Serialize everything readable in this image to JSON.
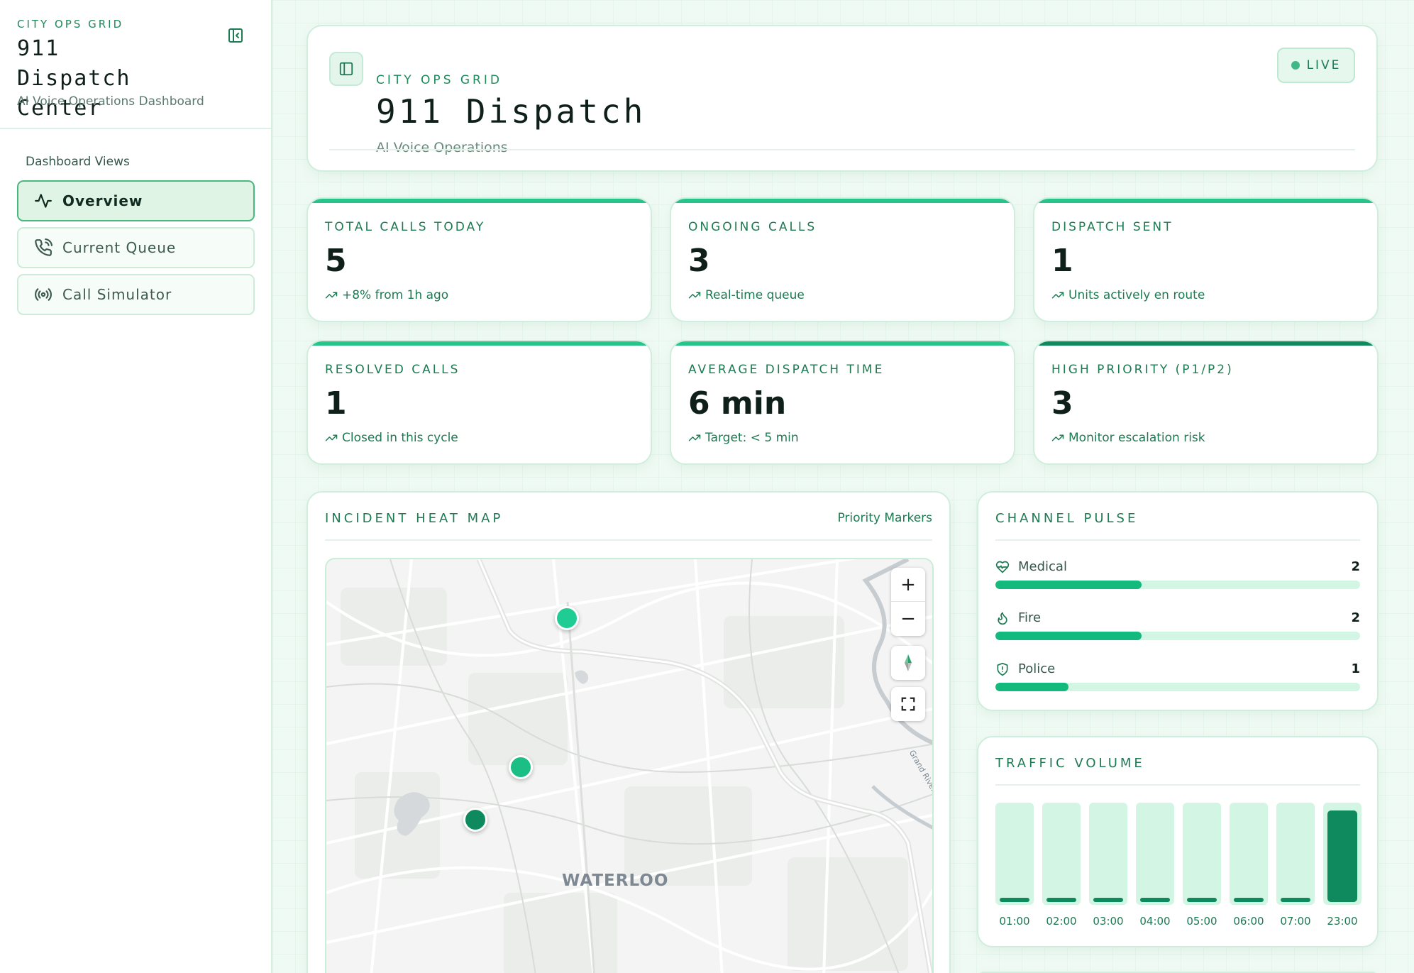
{
  "sidebar": {
    "eyebrow": "CITY OPS GRID",
    "title": "911 Dispatch Center",
    "subtitle": "AI Voice Operations Dashboard",
    "section_label": "Dashboard Views",
    "collapse_icon": "sidebar-collapse-icon",
    "items": [
      {
        "label": "Overview",
        "icon": "activity-icon",
        "active": true
      },
      {
        "label": "Current Queue",
        "icon": "phone-icon",
        "active": false
      },
      {
        "label": "Call Simulator",
        "icon": "broadcast-icon",
        "active": false
      }
    ]
  },
  "header": {
    "eyebrow": "CITY OPS GRID",
    "title": "911 Dispatch",
    "subtitle": "AI Voice Operations",
    "status": "LIVE",
    "toggle_icon": "panel-toggle-icon"
  },
  "stats": [
    {
      "label": "TOTAL CALLS TODAY",
      "value": "5",
      "note": "+8% from 1h ago"
    },
    {
      "label": "ONGOING CALLS",
      "value": "3",
      "note": "Real-time queue"
    },
    {
      "label": "DISPATCH SENT",
      "value": "1",
      "note": "Units actively en route"
    },
    {
      "label": "RESOLVED CALLS",
      "value": "1",
      "note": "Closed in this cycle"
    },
    {
      "label": "AVERAGE DISPATCH TIME",
      "value": "6 min",
      "note": "Target: < 5 min"
    },
    {
      "label": "HIGH PRIORITY (P1/P2)",
      "value": "3",
      "note": "Monitor escalation risk"
    }
  ],
  "map": {
    "title": "INCIDENT HEAT MAP",
    "right_label": "Priority Markers",
    "city_label": "WATERLOO",
    "river_label": "Grand River",
    "zoom_in": "+",
    "zoom_out": "−",
    "markers": [
      {
        "color": "#1fcc94"
      },
      {
        "color": "#1bbf86"
      },
      {
        "color": "#0f8a5f"
      }
    ]
  },
  "channel_pulse": {
    "title": "CHANNEL PULSE",
    "max": 5,
    "channels": [
      {
        "name": "Medical",
        "icon": "heart-pulse-icon",
        "count": "2",
        "value": 2
      },
      {
        "name": "Fire",
        "icon": "flame-icon",
        "count": "2",
        "value": 2
      },
      {
        "name": "Police",
        "icon": "shield-icon",
        "count": "1",
        "value": 1
      }
    ]
  },
  "traffic": {
    "title": "TRAFFIC VOLUME",
    "hours": [
      "01:00",
      "02:00",
      "03:00",
      "04:00",
      "05:00",
      "06:00",
      "07:00",
      "23:00"
    ],
    "levels": [
      0.04,
      0.04,
      0.04,
      0.04,
      0.04,
      0.04,
      0.04,
      0.95
    ]
  },
  "colors": {
    "accent": "#27c48a",
    "accent_dark": "#0f8a5f",
    "text_accent": "#1d7a52"
  }
}
